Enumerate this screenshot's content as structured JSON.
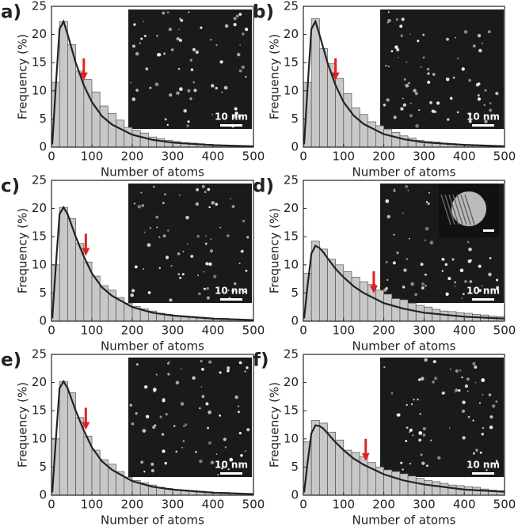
{
  "chart_data": [
    {
      "type": "histogram",
      "panel_label": "a)",
      "xlabel": "Number of atoms",
      "ylabel": "Frequency (%)",
      "color": "#c8c8c8",
      "bins": [
        0,
        20,
        40,
        60,
        80,
        100,
        120,
        140,
        160,
        180,
        200,
        220,
        240,
        260,
        280,
        300,
        320,
        340,
        360,
        380,
        400,
        420,
        440,
        460,
        480,
        500
      ],
      "values": [
        11.5,
        22.3,
        18.2,
        13.5,
        12.0,
        9.8,
        7.3,
        6.0,
        4.8,
        3.5,
        3.0,
        2.5,
        1.8,
        1.5,
        1.2,
        1.0,
        0.8,
        0.7,
        0.6,
        0.5,
        0.4,
        0.3,
        0.3,
        0.2,
        0.2
      ],
      "fit": {
        "x": [
          2,
          10,
          20,
          30,
          40,
          50,
          60,
          80,
          100,
          125,
          150,
          200,
          250,
          300,
          400,
          500
        ],
        "values": [
          0.5,
          10,
          21,
          22.3,
          20,
          17.5,
          15,
          11,
          8,
          5.5,
          4,
          2.2,
          1.3,
          0.8,
          0.35,
          0.15
        ],
        "color": "#222222"
      },
      "arrow_x": 80,
      "arrow_color": "#e02020",
      "scale_label": "10 nm",
      "xlim": [
        0,
        500
      ],
      "ylim": [
        0,
        25
      ],
      "xticks": [
        0,
        100,
        200,
        300,
        400,
        500
      ],
      "yticks": [
        0,
        5,
        10,
        15,
        20,
        25
      ]
    },
    {
      "type": "histogram",
      "panel_label": "b)",
      "xlabel": "Number of atoms",
      "ylabel": "Frequency (%)",
      "color": "#c8c8c8",
      "bins": [
        0,
        20,
        40,
        60,
        80,
        100,
        120,
        140,
        160,
        180,
        200,
        220,
        240,
        260,
        280,
        300,
        320,
        340,
        360,
        380,
        400,
        420,
        440,
        460,
        480,
        500
      ],
      "values": [
        11.5,
        22.8,
        17.5,
        14.8,
        12.2,
        9.5,
        7.0,
        5.8,
        4.5,
        3.8,
        3.2,
        2.6,
        2.0,
        1.6,
        1.2,
        1.0,
        0.9,
        0.7,
        0.6,
        0.5,
        0.4,
        0.3,
        0.3,
        0.2,
        0.2
      ],
      "fit": {
        "x": [
          2,
          10,
          20,
          30,
          40,
          50,
          60,
          80,
          100,
          125,
          150,
          200,
          250,
          300,
          400,
          500
        ],
        "values": [
          0.5,
          10,
          21,
          22.3,
          20,
          17.5,
          15,
          11,
          8,
          5.6,
          4.1,
          2.3,
          1.4,
          0.85,
          0.4,
          0.15
        ],
        "color": "#222222"
      },
      "arrow_x": 80,
      "arrow_color": "#e02020",
      "scale_label": "10 nm",
      "xlim": [
        0,
        500
      ],
      "ylim": [
        0,
        25
      ],
      "xticks": [
        0,
        100,
        200,
        300,
        400,
        500
      ],
      "yticks": [
        0,
        5,
        10,
        15,
        20,
        25
      ]
    },
    {
      "type": "histogram",
      "panel_label": "c)",
      "xlabel": "Number of atoms",
      "ylabel": "Frequency (%)",
      "color": "#c8c8c8",
      "bins": [
        0,
        20,
        40,
        60,
        80,
        100,
        120,
        140,
        160,
        180,
        200,
        220,
        240,
        260,
        280,
        300,
        320,
        340,
        360,
        380,
        400,
        420,
        440,
        460,
        480,
        500
      ],
      "values": [
        10,
        20.2,
        18.2,
        13.8,
        10.5,
        8.0,
        6.3,
        5.5,
        4.2,
        3.2,
        2.6,
        2.2,
        1.8,
        1.4,
        1.2,
        1.0,
        0.9,
        0.8,
        0.7,
        0.6,
        0.5,
        0.5,
        0.4,
        0.3,
        0.2
      ],
      "fit": {
        "x": [
          2,
          10,
          20,
          30,
          40,
          50,
          60,
          80,
          100,
          125,
          150,
          200,
          250,
          300,
          400,
          500
        ],
        "values": [
          0.5,
          9,
          19,
          20.2,
          19,
          17,
          15,
          11.5,
          8.5,
          6,
          4.5,
          2.5,
          1.5,
          1,
          0.45,
          0.2
        ],
        "color": "#222222"
      },
      "arrow_x": 85,
      "arrow_color": "#e02020",
      "scale_label": "10 nm",
      "xlim": [
        0,
        500
      ],
      "ylim": [
        0,
        25
      ],
      "xticks": [
        0,
        100,
        200,
        300,
        400,
        500
      ],
      "yticks": [
        0,
        5,
        10,
        15,
        20,
        25
      ]
    },
    {
      "type": "histogram",
      "panel_label": "d)",
      "xlabel": "Number of atoms",
      "ylabel": "Frequency (%)",
      "color": "#c8c8c8",
      "bins": [
        0,
        20,
        40,
        60,
        80,
        100,
        120,
        140,
        160,
        180,
        200,
        220,
        240,
        260,
        280,
        300,
        320,
        340,
        360,
        380,
        400,
        420,
        440,
        460,
        480,
        500
      ],
      "values": [
        8.5,
        14.2,
        12.8,
        11.0,
        10.0,
        8.8,
        7.8,
        7.0,
        6.5,
        5.5,
        4.8,
        4.0,
        3.8,
        3.2,
        2.8,
        2.5,
        2.1,
        1.8,
        1.7,
        1.5,
        1.4,
        1.2,
        1.1,
        0.9,
        0.8
      ],
      "fit": {
        "x": [
          2,
          10,
          20,
          30,
          40,
          50,
          60,
          80,
          100,
          125,
          150,
          200,
          250,
          300,
          400,
          500
        ],
        "values": [
          0.5,
          6,
          12,
          13.4,
          13,
          12.2,
          11.2,
          9.3,
          7.8,
          6.2,
          5,
          3.2,
          2.2,
          1.5,
          0.8,
          0.45
        ],
        "color": "#222222"
      },
      "arrow_x": 175,
      "arrow_color": "#e02020",
      "scale_label": "10 nm",
      "xlim": [
        0,
        500
      ],
      "ylim": [
        0,
        25
      ],
      "xticks": [
        0,
        100,
        200,
        300,
        400,
        500
      ],
      "yticks": [
        0,
        5,
        10,
        15,
        20,
        25
      ]
    },
    {
      "type": "histogram",
      "panel_label": "e)",
      "xlabel": "Number of atoms",
      "ylabel": "Frequency (%)",
      "color": "#c8c8c8",
      "bins": [
        0,
        20,
        40,
        60,
        80,
        100,
        120,
        140,
        160,
        180,
        200,
        220,
        240,
        260,
        280,
        300,
        320,
        340,
        360,
        380,
        400,
        420,
        440,
        460,
        480,
        500
      ],
      "values": [
        10,
        20.2,
        18.2,
        13.8,
        10.5,
        8.0,
        6.3,
        5.5,
        4.2,
        3.2,
        2.6,
        2.2,
        1.8,
        1.4,
        1.2,
        1.0,
        0.9,
        0.8,
        0.7,
        0.6,
        0.5,
        0.5,
        0.4,
        0.3,
        0.2
      ],
      "fit": {
        "x": [
          2,
          10,
          20,
          30,
          40,
          50,
          60,
          80,
          100,
          125,
          150,
          200,
          250,
          300,
          400,
          500
        ],
        "values": [
          0.5,
          9,
          19,
          20.2,
          19,
          17,
          15,
          11.5,
          8.5,
          6,
          4.5,
          2.5,
          1.5,
          1,
          0.45,
          0.2
        ],
        "color": "#222222"
      },
      "arrow_x": 85,
      "arrow_color": "#e02020",
      "scale_label": "10 nm",
      "xlim": [
        0,
        500
      ],
      "ylim": [
        0,
        25
      ],
      "xticks": [
        0,
        100,
        200,
        300,
        400,
        500
      ],
      "yticks": [
        0,
        5,
        10,
        15,
        20,
        25
      ]
    },
    {
      "type": "histogram",
      "panel_label": "f)",
      "xlabel": "Number of atoms",
      "ylabel": "Frequency (%)",
      "color": "#c8c8c8",
      "bins": [
        0,
        20,
        40,
        60,
        80,
        100,
        120,
        140,
        160,
        180,
        200,
        220,
        240,
        260,
        280,
        300,
        320,
        340,
        360,
        380,
        400,
        420,
        440,
        460,
        480,
        500
      ],
      "values": [
        9.5,
        13.3,
        12.8,
        11.2,
        9.8,
        8.0,
        7.6,
        6.8,
        5.8,
        5.0,
        4.5,
        4.2,
        3.8,
        3.4,
        3.0,
        2.6,
        2.4,
        2.1,
        1.8,
        1.7,
        1.5,
        1.4,
        1.1,
        0.9,
        0.8
      ],
      "fit": {
        "x": [
          2,
          10,
          20,
          30,
          40,
          50,
          60,
          80,
          100,
          125,
          150,
          200,
          250,
          300,
          400,
          500
        ],
        "values": [
          0.5,
          5.5,
          11,
          12.4,
          12.3,
          11.8,
          11,
          9.4,
          8,
          6.5,
          5.4,
          3.7,
          2.6,
          1.9,
          1,
          0.6
        ],
        "color": "#222222"
      },
      "arrow_x": 155,
      "arrow_color": "#e02020",
      "scale_label": "10 nm",
      "xlim": [
        0,
        500
      ],
      "ylim": [
        0,
        25
      ],
      "xticks": [
        0,
        100,
        200,
        300,
        400,
        500
      ],
      "yticks": [
        0,
        5,
        10,
        15,
        20,
        25
      ]
    }
  ]
}
